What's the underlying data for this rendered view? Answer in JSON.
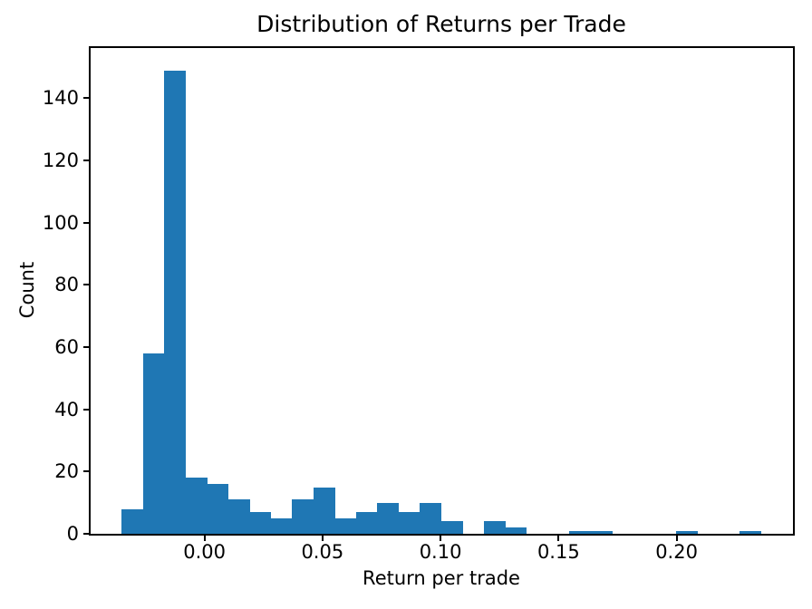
{
  "figure": {
    "background": "#ffffff"
  },
  "chart_data": {
    "type": "bar",
    "subtype": "histogram",
    "title": "Distribution of Returns per Trade",
    "xlabel": "Return per trade",
    "ylabel": "Count",
    "bar_color": "#1f77b4",
    "axis_color": "#000000",
    "grid": false,
    "legend": null,
    "bin_start": -0.0351,
    "bin_width": 0.00903,
    "counts": [
      8,
      58,
      149,
      18,
      16,
      11,
      7,
      5,
      11,
      15,
      5,
      7,
      10,
      7,
      10,
      4,
      0,
      4,
      2,
      0,
      0,
      1,
      1,
      0,
      0,
      0,
      1,
      0,
      0,
      1
    ],
    "xlim": [
      -0.0486,
      0.2493
    ],
    "ylim": [
      0,
      156.45
    ],
    "xticks": [
      {
        "value": 0.0,
        "label": "0.00"
      },
      {
        "value": 0.05,
        "label": "0.05"
      },
      {
        "value": 0.1,
        "label": "0.10"
      },
      {
        "value": 0.15,
        "label": "0.15"
      },
      {
        "value": 0.2,
        "label": "0.20"
      }
    ],
    "yticks": [
      {
        "value": 0,
        "label": "0"
      },
      {
        "value": 20,
        "label": "20"
      },
      {
        "value": 40,
        "label": "40"
      },
      {
        "value": 60,
        "label": "60"
      },
      {
        "value": 80,
        "label": "80"
      },
      {
        "value": 100,
        "label": "100"
      },
      {
        "value": 120,
        "label": "120"
      },
      {
        "value": 140,
        "label": "140"
      }
    ]
  }
}
